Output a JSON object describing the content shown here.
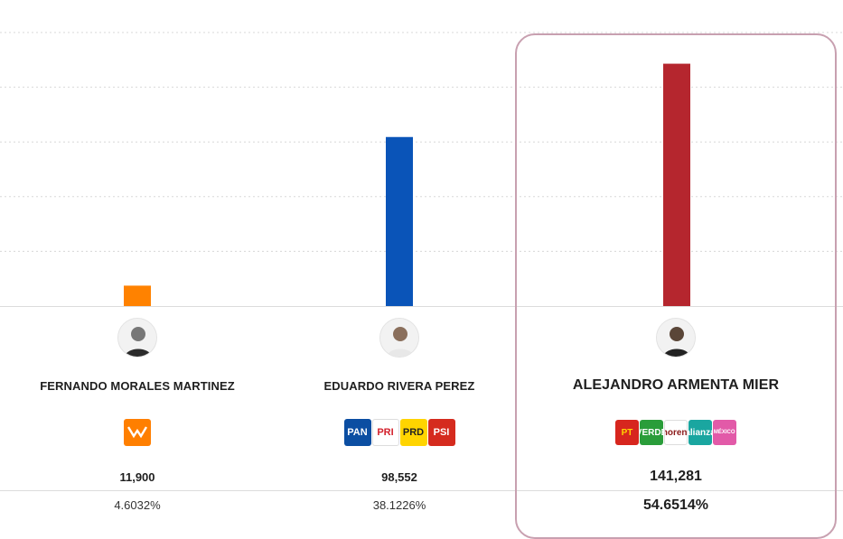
{
  "chart_data": {
    "type": "bar",
    "categories": [
      "FERNANDO MORALES MARTINEZ",
      "EDUARDO RIVERA PEREZ",
      "ALEJANDRO ARMENTA MIER"
    ],
    "values": [
      11900,
      98552,
      141281
    ],
    "ylim": [
      0,
      160000
    ],
    "grid": true,
    "colors": [
      "#ff8200",
      "#0a54b8",
      "#b5262e"
    ],
    "highlight_index": 2
  },
  "candidates": [
    {
      "name": "FERNANDO MORALES MARTINEZ",
      "votes": "11,900",
      "percent": "4.6032%",
      "parties": [
        {
          "icon": "movimiento-ciudadano-logo",
          "label": "",
          "bg": "#ff7f00",
          "fg": "#ffffff"
        }
      ]
    },
    {
      "name": "EDUARDO RIVERA PEREZ",
      "votes": "98,552",
      "percent": "38.1226%",
      "parties": [
        {
          "icon": "pan-logo",
          "label": "PAN",
          "bg": "#0b4ea2",
          "fg": "#ffffff"
        },
        {
          "icon": "pri-logo",
          "label": "PRI",
          "bg": "#ffffff",
          "fg": "#d3212c"
        },
        {
          "icon": "prd-logo",
          "label": "PRD",
          "bg": "#ffd400",
          "fg": "#222222"
        },
        {
          "icon": "psi-logo",
          "label": "PSI",
          "bg": "#d52b1e",
          "fg": "#ffffff"
        }
      ]
    },
    {
      "name": "ALEJANDRO ARMENTA MIER",
      "votes": "141,281",
      "percent": "54.6514%",
      "parties": [
        {
          "icon": "pt-logo",
          "label": "PT",
          "bg": "#d7261e",
          "fg": "#ffd400"
        },
        {
          "icon": "verde-logo",
          "label": "VERDE",
          "bg": "#2a9d3a",
          "fg": "#ffffff"
        },
        {
          "icon": "morena-logo",
          "label": "morena",
          "bg": "#ffffff",
          "fg": "#8b1a1a"
        },
        {
          "icon": "nueva-alianza-logo",
          "label": "alianza",
          "bg": "#1aa6a0",
          "fg": "#ffffff"
        },
        {
          "icon": "fuerza-mexico-logo",
          "label": "FUERZA MÉXICO PUEBLA",
          "bg": "#e25aa8",
          "fg": "#ffffff"
        }
      ]
    }
  ]
}
